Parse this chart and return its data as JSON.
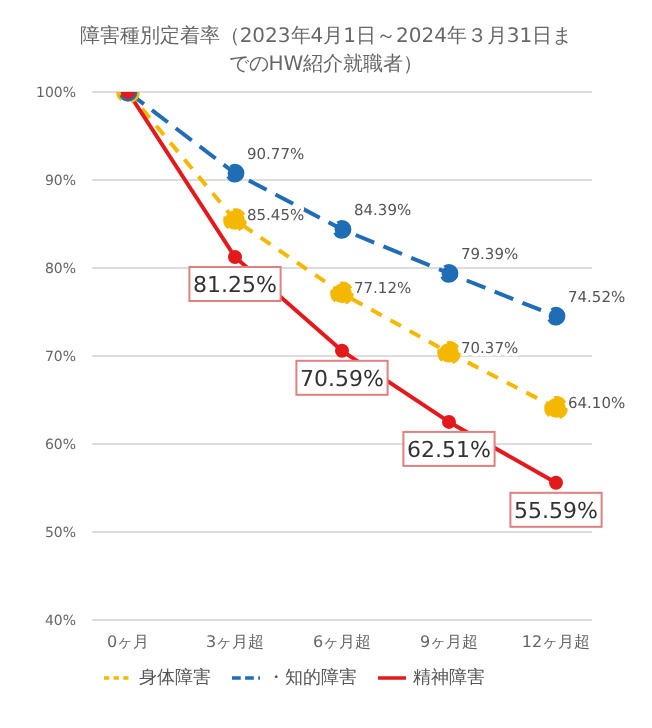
{
  "chart_data": {
    "type": "line",
    "title": "障害種別定着率（2023年4月1日～2024年３月31日までのHW紹介就職者）",
    "categories": [
      "0ヶ月",
      "3ヶ月超",
      "6ヶ月超",
      "9ヶ月超",
      "12ヶ月超"
    ],
    "series": [
      {
        "name": "身体障害",
        "color": "#f5b800",
        "values": [
          100,
          85.45,
          77.12,
          70.37,
          64.1
        ],
        "value_labels": [
          null,
          "85.45%",
          "77.12%",
          "70.37%",
          "64.10%"
        ],
        "line_style": "dashed"
      },
      {
        "name": "・知的障害",
        "color": "#1f6db5",
        "values": [
          100,
          90.77,
          84.39,
          79.39,
          74.52
        ],
        "value_labels": [
          null,
          "90.77%",
          "84.39%",
          "79.39%",
          "74.52%"
        ],
        "line_style": "dashed"
      },
      {
        "name": "精神障害",
        "color": "#e31a1c",
        "values": [
          100,
          81.25,
          70.59,
          62.51,
          55.59
        ],
        "value_labels": [
          null,
          "81.25%",
          "70.59%",
          "62.51%",
          "55.59%"
        ],
        "line_style": "solid"
      }
    ],
    "ylim": [
      40,
      100
    ],
    "yticks": [
      {
        "value": 40,
        "label": "40%"
      },
      {
        "value": 50,
        "label": "50%"
      },
      {
        "value": 60,
        "label": "60%"
      },
      {
        "value": 70,
        "label": "70%"
      },
      {
        "value": 80,
        "label": "80%"
      },
      {
        "value": 90,
        "label": "90%"
      },
      {
        "value": 100,
        "label": "100%"
      }
    ],
    "grid": "y",
    "legend": "bottom",
    "marker": "circle"
  }
}
